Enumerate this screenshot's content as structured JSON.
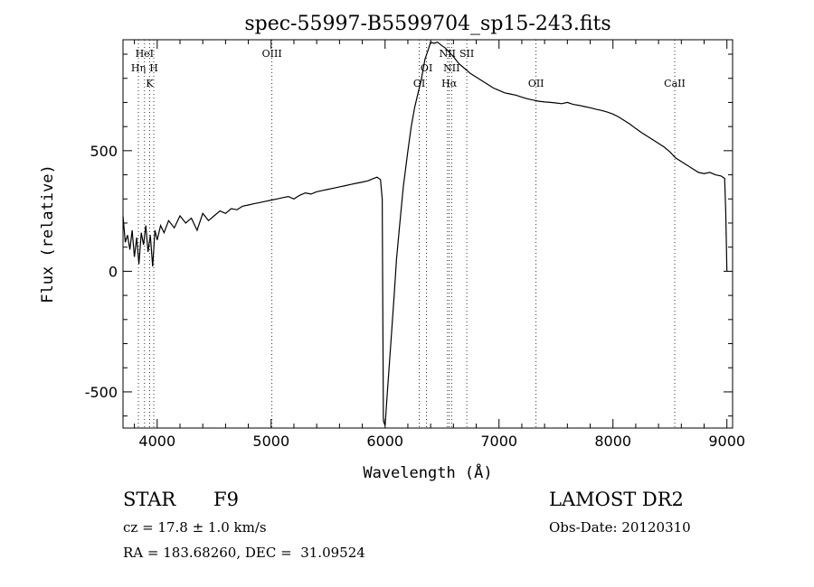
{
  "chart_data": {
    "type": "line",
    "title": "spec-55997-B5599704_sp15-243.fits",
    "xlabel": "Wavelength (Å)",
    "ylabel": "Flux (relative)",
    "xlim": [
      3700,
      9050
    ],
    "ylim": [
      -650,
      960
    ],
    "xticks": [
      4000,
      5000,
      6000,
      7000,
      8000,
      9000
    ],
    "yticks": [
      -500,
      0,
      500
    ],
    "grid": false,
    "series": [
      {
        "points": [
          [
            3700,
            230
          ],
          [
            3720,
            120
          ],
          [
            3740,
            150
          ],
          [
            3760,
            90
          ],
          [
            3780,
            170
          ],
          [
            3800,
            60
          ],
          [
            3820,
            140
          ],
          [
            3840,
            30
          ],
          [
            3860,
            160
          ],
          [
            3880,
            110
          ],
          [
            3900,
            190
          ],
          [
            3920,
            80
          ],
          [
            3940,
            150
          ],
          [
            3960,
            20
          ],
          [
            3980,
            170
          ],
          [
            4000,
            130
          ],
          [
            4030,
            190
          ],
          [
            4060,
            160
          ],
          [
            4100,
            210
          ],
          [
            4150,
            180
          ],
          [
            4200,
            230
          ],
          [
            4250,
            200
          ],
          [
            4300,
            220
          ],
          [
            4350,
            170
          ],
          [
            4400,
            240
          ],
          [
            4450,
            210
          ],
          [
            4500,
            230
          ],
          [
            4550,
            250
          ],
          [
            4600,
            240
          ],
          [
            4650,
            260
          ],
          [
            4700,
            255
          ],
          [
            4750,
            270
          ],
          [
            4800,
            275
          ],
          [
            4850,
            280
          ],
          [
            4900,
            285
          ],
          [
            4950,
            290
          ],
          [
            5000,
            295
          ],
          [
            5050,
            300
          ],
          [
            5100,
            305
          ],
          [
            5150,
            310
          ],
          [
            5200,
            300
          ],
          [
            5250,
            315
          ],
          [
            5300,
            325
          ],
          [
            5350,
            320
          ],
          [
            5400,
            330
          ],
          [
            5450,
            335
          ],
          [
            5500,
            340
          ],
          [
            5550,
            345
          ],
          [
            5600,
            350
          ],
          [
            5650,
            355
          ],
          [
            5700,
            360
          ],
          [
            5750,
            365
          ],
          [
            5800,
            370
          ],
          [
            5850,
            375
          ],
          [
            5900,
            385
          ],
          [
            5930,
            390
          ],
          [
            5960,
            380
          ],
          [
            5975,
            300
          ],
          [
            5985,
            -620
          ],
          [
            6000,
            -640
          ],
          [
            6020,
            -500
          ],
          [
            6050,
            -300
          ],
          [
            6080,
            -100
          ],
          [
            6100,
            50
          ],
          [
            6130,
            200
          ],
          [
            6160,
            350
          ],
          [
            6200,
            500
          ],
          [
            6230,
            600
          ],
          [
            6260,
            680
          ],
          [
            6290,
            740
          ],
          [
            6320,
            800
          ],
          [
            6350,
            880
          ],
          [
            6380,
            920
          ],
          [
            6400,
            950
          ],
          [
            6430,
            945
          ],
          [
            6460,
            950
          ],
          [
            6500,
            935
          ],
          [
            6530,
            925
          ],
          [
            6560,
            910
          ],
          [
            6600,
            890
          ],
          [
            6650,
            860
          ],
          [
            6700,
            840
          ],
          [
            6750,
            820
          ],
          [
            6800,
            805
          ],
          [
            6850,
            790
          ],
          [
            6900,
            775
          ],
          [
            6950,
            760
          ],
          [
            7000,
            750
          ],
          [
            7050,
            740
          ],
          [
            7100,
            735
          ],
          [
            7150,
            730
          ],
          [
            7200,
            722
          ],
          [
            7250,
            715
          ],
          [
            7300,
            710
          ],
          [
            7350,
            705
          ],
          [
            7400,
            702
          ],
          [
            7450,
            700
          ],
          [
            7500,
            698
          ],
          [
            7550,
            695
          ],
          [
            7600,
            700
          ],
          [
            7650,
            692
          ],
          [
            7700,
            688
          ],
          [
            7750,
            683
          ],
          [
            7800,
            678
          ],
          [
            7850,
            672
          ],
          [
            7900,
            667
          ],
          [
            7950,
            660
          ],
          [
            8000,
            652
          ],
          [
            8050,
            640
          ],
          [
            8100,
            625
          ],
          [
            8150,
            610
          ],
          [
            8200,
            592
          ],
          [
            8250,
            575
          ],
          [
            8300,
            560
          ],
          [
            8350,
            545
          ],
          [
            8400,
            530
          ],
          [
            8450,
            515
          ],
          [
            8500,
            495
          ],
          [
            8550,
            470
          ],
          [
            8600,
            455
          ],
          [
            8650,
            440
          ],
          [
            8700,
            425
          ],
          [
            8750,
            410
          ],
          [
            8800,
            405
          ],
          [
            8850,
            410
          ],
          [
            8900,
            400
          ],
          [
            8950,
            395
          ],
          [
            8980,
            385
          ],
          [
            8990,
            250
          ],
          [
            9000,
            0
          ]
        ]
      }
    ],
    "line_marks": [
      {
        "label": "HeI",
        "x": 3889,
        "row": 1
      },
      {
        "label": "Hη",
        "x": 3835,
        "row": 2
      },
      {
        "label": "H",
        "x": 3970,
        "row": 2
      },
      {
        "label": "K",
        "x": 3934,
        "row": 3
      },
      {
        "label": "OIII",
        "x": 5007,
        "row": 1
      },
      {
        "label": "OI",
        "x": 6300,
        "row": 3
      },
      {
        "label": "OI",
        "x": 6364,
        "row": 2
      },
      {
        "label": "NII",
        "x": 6548,
        "row": 1
      },
      {
        "label": "NII",
        "x": 6584,
        "row": 2
      },
      {
        "label": "Hα",
        "x": 6563,
        "row": 3
      },
      {
        "label": "SII",
        "x": 6717,
        "row": 1
      },
      {
        "label": "OII",
        "x": 7325,
        "row": 3
      },
      {
        "label": "CaII",
        "x": 8542,
        "row": 3
      }
    ]
  },
  "info": {
    "object_class": "STAR",
    "subclass": "F9",
    "survey": "LAMOST DR2",
    "cz": "cz = 17.8 ± 1.0 km/s",
    "obs_date": "Obs-Date: 20120310",
    "coords": "RA = 183.68260, DEC =  31.09524"
  }
}
